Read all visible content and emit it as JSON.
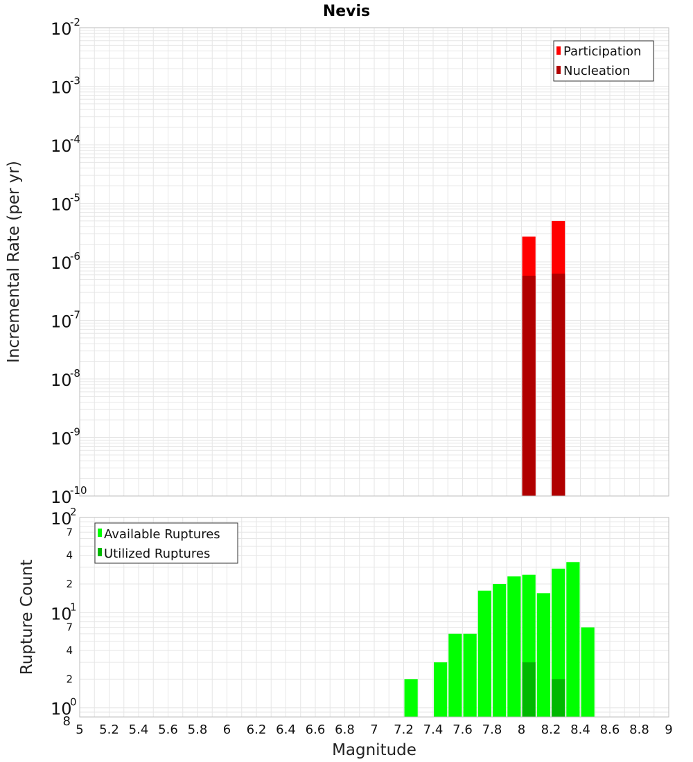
{
  "title": "Nevis",
  "xlabel": "Magnitude",
  "colors": {
    "participation": "#ff0000",
    "nucleation": "#b00000",
    "available": "#00ff00",
    "utilized": "#00b800",
    "grid": "#e6e6e6",
    "border": "#bdbdbd"
  },
  "chart_data": [
    {
      "type": "bar",
      "ylabel": "Incremental Rate (per yr)",
      "yscale": "log",
      "ylim": [
        1e-10,
        0.01
      ],
      "xlim": [
        5,
        9
      ],
      "legend_position": "top-right",
      "series": [
        {
          "name": "Participation",
          "color": "#ff0000",
          "x": [
            8.05,
            8.25
          ],
          "values": [
            2.7e-06,
            5e-06
          ]
        },
        {
          "name": "Nucleation",
          "color": "#b00000",
          "x": [
            8.05,
            8.25
          ],
          "values": [
            5.8e-07,
            6.3e-07
          ]
        }
      ]
    },
    {
      "type": "bar",
      "ylabel": "Rupture Count",
      "yscale": "log",
      "ylim": [
        0.8,
        100
      ],
      "xlim": [
        5,
        9
      ],
      "legend_position": "top-left",
      "series": [
        {
          "name": "Available Ruptures",
          "color": "#00ff00",
          "x": [
            7.25,
            7.45,
            7.55,
            7.65,
            7.75,
            7.85,
            7.95,
            8.05,
            8.15,
            8.25,
            8.35,
            8.45
          ],
          "values": [
            2,
            3,
            6,
            6,
            17,
            20,
            24,
            25,
            16,
            29,
            34,
            7
          ]
        },
        {
          "name": "Utilized Ruptures",
          "color": "#00b800",
          "x": [
            8.05,
            8.25
          ],
          "values": [
            3,
            2
          ]
        }
      ]
    }
  ],
  "x_ticks": [
    "5",
    "5.2",
    "5.4",
    "5.6",
    "5.8",
    "6",
    "6.2",
    "6.4",
    "6.6",
    "6.8",
    "7",
    "7.2",
    "7.4",
    "7.6",
    "7.8",
    "8",
    "8.2",
    "8.4",
    "8.6",
    "8.8",
    "9"
  ],
  "top_y_ticks": [
    {
      "base": "10",
      "exp": "-10"
    },
    {
      "base": "10",
      "exp": "-9"
    },
    {
      "base": "10",
      "exp": "-8"
    },
    {
      "base": "10",
      "exp": "-7"
    },
    {
      "base": "10",
      "exp": "-6"
    },
    {
      "base": "10",
      "exp": "-5"
    },
    {
      "base": "10",
      "exp": "-4"
    },
    {
      "base": "10",
      "exp": "-3"
    },
    {
      "base": "10",
      "exp": "-2"
    }
  ],
  "bottom_y_major": [
    {
      "base": "10",
      "exp": "0"
    },
    {
      "base": "10",
      "exp": "1"
    },
    {
      "base": "10",
      "exp": "2"
    }
  ],
  "bottom_y_minor": [
    "8",
    "2",
    "4",
    "7",
    "2",
    "4",
    "7"
  ]
}
